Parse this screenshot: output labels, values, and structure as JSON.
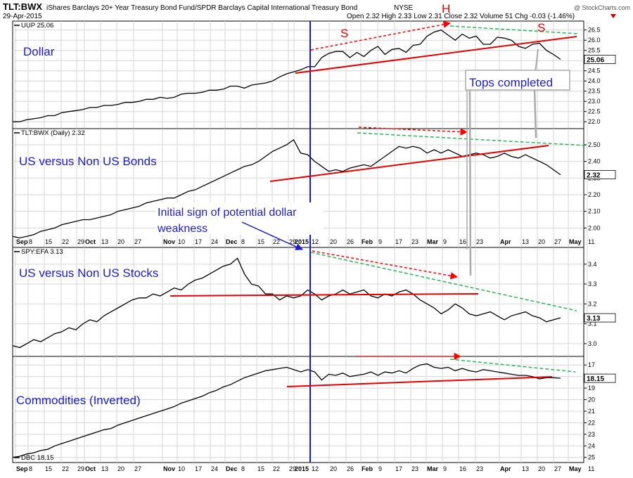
{
  "header": {
    "symbol": "TLT:BWX",
    "description": "iShares Barclays 20+ Year Treasury Bond Fund/SPDR Barclays Capital International Treasury Bond",
    "exchange": "NYSE",
    "date": "29-Apr-2015",
    "ohlc": "Open 2.32  High 2.33  Low 2.31  Close 2.32  Volume 51  Chg -0.03 (-1.46%)",
    "watermark": "@ StockCharts.com"
  },
  "annotations": {
    "initial_sign_line1": "Initial sign of potential dollar",
    "initial_sign_line2": "weakness",
    "tops_completed": "Tops completed",
    "s_left": "S",
    "h": "H",
    "s_right": "S"
  },
  "x_axis": {
    "labels": [
      {
        "t": "Sep",
        "bold": true
      },
      {
        "t": "8"
      },
      {
        "t": "15"
      },
      {
        "t": "22"
      },
      {
        "t": "29"
      },
      {
        "t": "Oct",
        "bold": true
      },
      {
        "t": "13"
      },
      {
        "t": "20"
      },
      {
        "t": "27"
      },
      {
        "t": "Nov",
        "bold": true
      },
      {
        "t": "10"
      },
      {
        "t": "17"
      },
      {
        "t": "24"
      },
      {
        "t": "Dec",
        "bold": true
      },
      {
        "t": "8"
      },
      {
        "t": "15"
      },
      {
        "t": "22"
      },
      {
        "t": "29"
      },
      {
        "t": "2015",
        "bold": true
      },
      {
        "t": "12"
      },
      {
        "t": "20"
      },
      {
        "t": "26"
      },
      {
        "t": "Feb",
        "bold": true
      },
      {
        "t": "9"
      },
      {
        "t": "17"
      },
      {
        "t": "23"
      },
      {
        "t": "Mar",
        "bold": true
      },
      {
        "t": "9"
      },
      {
        "t": "16"
      },
      {
        "t": "23"
      },
      {
        "t": "Apr",
        "bold": true
      },
      {
        "t": "13"
      },
      {
        "t": "20"
      },
      {
        "t": "27"
      },
      {
        "t": "May",
        "bold": true
      },
      {
        "t": "11"
      }
    ]
  },
  "colors": {
    "price": "#000000",
    "support": "#e60000",
    "resistance": "#22bb55",
    "arrow": "#ff0000",
    "annotation": "#1c1ccc",
    "vline": "#1c1cb8",
    "grid": "#d4d4d4"
  },
  "chart_data": [
    {
      "type": "line",
      "legend": "UUP 25.06",
      "panel_label": "Dollar",
      "last_value": "25.06",
      "ylim": [
        21.8,
        26.8
      ],
      "y_ticks": [
        "22.0",
        "22.5",
        "23.0",
        "23.5",
        "24.0",
        "24.5",
        "25.0",
        "25.5",
        "26.0",
        "26.5"
      ],
      "series": [
        {
          "values": [
            22.0,
            22.0,
            22.1,
            22.15,
            22.2,
            22.3,
            22.3,
            22.45,
            22.5,
            22.55,
            22.6,
            22.7,
            22.7,
            22.8,
            22.8,
            22.85,
            22.95,
            22.95,
            23.0,
            23.1,
            23.1,
            23.2,
            23.15,
            23.2,
            23.35,
            23.4,
            23.4,
            23.45,
            23.55,
            23.55,
            23.6,
            23.75,
            23.75,
            23.65,
            23.8,
            23.85,
            23.9,
            24.0,
            24.2,
            24.35,
            24.45,
            24.55,
            24.7,
            24.7,
            25.15,
            25.35,
            25.45,
            25.45,
            25.15,
            25.4,
            25.2,
            25.5,
            25.7,
            25.3,
            25.55,
            25.6,
            25.4,
            25.75,
            25.8,
            26.2,
            26.4,
            26.5,
            26.25,
            26.0,
            26.3,
            26.1,
            26.2,
            25.8,
            25.8,
            26.15,
            26.1,
            26.0,
            25.7,
            25.6,
            25.8,
            25.85,
            25.5,
            25.3,
            25.06
          ]
        }
      ]
    },
    {
      "type": "line",
      "legend": "TLT:BWX (Daily) 2.32",
      "panel_label": "US versus Non US Bonds",
      "last_value": "2.32",
      "ylim": [
        1.9,
        2.58
      ],
      "y_ticks": [
        "2.00",
        "2.10",
        "2.20",
        "2.30",
        "2.40",
        "2.50"
      ],
      "series": [
        {
          "values": [
            1.95,
            1.94,
            1.95,
            1.96,
            1.98,
            1.99,
            2.0,
            2.02,
            2.03,
            2.04,
            2.05,
            2.05,
            2.06,
            2.07,
            2.08,
            2.1,
            2.11,
            2.12,
            2.13,
            2.15,
            2.16,
            2.17,
            2.18,
            2.18,
            2.2,
            2.22,
            2.23,
            2.25,
            2.27,
            2.29,
            2.31,
            2.33,
            2.35,
            2.37,
            2.38,
            2.4,
            2.43,
            2.46,
            2.48,
            2.5,
            2.53,
            2.45,
            2.44,
            2.4,
            2.37,
            2.34,
            2.35,
            2.34,
            2.36,
            2.37,
            2.38,
            2.37,
            2.4,
            2.43,
            2.46,
            2.49,
            2.48,
            2.49,
            2.48,
            2.45,
            2.47,
            2.45,
            2.47,
            2.45,
            2.43,
            2.44,
            2.45,
            2.44,
            2.42,
            2.43,
            2.45,
            2.43,
            2.42,
            2.44,
            2.42,
            2.4,
            2.38,
            2.35,
            2.32
          ]
        }
      ]
    },
    {
      "type": "line",
      "legend": "SPY:EFA 3.13",
      "panel_label": "US versus Non US Stocks",
      "last_value": "3.13",
      "ylim": [
        2.95,
        3.47
      ],
      "y_ticks": [
        "3.0",
        "3.1",
        "3.2",
        "3.3",
        "3.4"
      ],
      "series": [
        {
          "values": [
            2.99,
            2.98,
            3.0,
            3.02,
            3.01,
            3.03,
            3.05,
            3.06,
            3.08,
            3.07,
            3.1,
            3.12,
            3.11,
            3.14,
            3.16,
            3.18,
            3.2,
            3.22,
            3.23,
            3.23,
            3.25,
            3.24,
            3.26,
            3.28,
            3.27,
            3.3,
            3.32,
            3.33,
            3.35,
            3.37,
            3.39,
            3.4,
            3.43,
            3.35,
            3.3,
            3.29,
            3.25,
            3.25,
            3.22,
            3.24,
            3.23,
            3.24,
            3.27,
            3.25,
            3.22,
            3.24,
            3.25,
            3.27,
            3.25,
            3.26,
            3.27,
            3.24,
            3.23,
            3.25,
            3.24,
            3.26,
            3.27,
            3.25,
            3.22,
            3.2,
            3.18,
            3.15,
            3.17,
            3.2,
            3.18,
            3.15,
            3.14,
            3.15,
            3.16,
            3.14,
            3.12,
            3.14,
            3.15,
            3.16,
            3.14,
            3.13,
            3.11,
            3.12,
            3.13
          ]
        }
      ]
    },
    {
      "type": "line",
      "legend": "DBC 18.15",
      "panel_label": "Commodities (Inverted)",
      "last_value": "18.15",
      "inverted": true,
      "ylim": [
        16.5,
        25.2
      ],
      "y_ticks": [
        "17",
        "18",
        "19",
        "20",
        "21",
        "22",
        "23",
        "24",
        "25"
      ],
      "series": [
        {
          "values": [
            25.0,
            24.9,
            24.7,
            24.6,
            24.4,
            24.3,
            24.0,
            23.8,
            23.6,
            23.4,
            23.2,
            23.0,
            22.8,
            22.6,
            22.5,
            22.2,
            22.0,
            21.8,
            21.6,
            21.4,
            21.2,
            21.0,
            20.8,
            20.6,
            20.3,
            20.1,
            19.9,
            19.7,
            19.4,
            19.2,
            18.9,
            18.7,
            18.4,
            18.1,
            17.9,
            17.7,
            17.5,
            17.4,
            17.3,
            17.2,
            17.4,
            17.6,
            17.4,
            17.6,
            18.3,
            17.8,
            17.9,
            17.7,
            18.0,
            17.9,
            17.8,
            17.6,
            17.9,
            17.6,
            17.7,
            17.5,
            17.7,
            17.3,
            17.0,
            16.9,
            17.2,
            17.3,
            17.2,
            17.5,
            17.3,
            17.5,
            17.6,
            17.4,
            17.5,
            17.6,
            17.7,
            17.8,
            17.9,
            17.9,
            18.0,
            18.2,
            18.1,
            18.1,
            18.15
          ]
        }
      ]
    }
  ]
}
